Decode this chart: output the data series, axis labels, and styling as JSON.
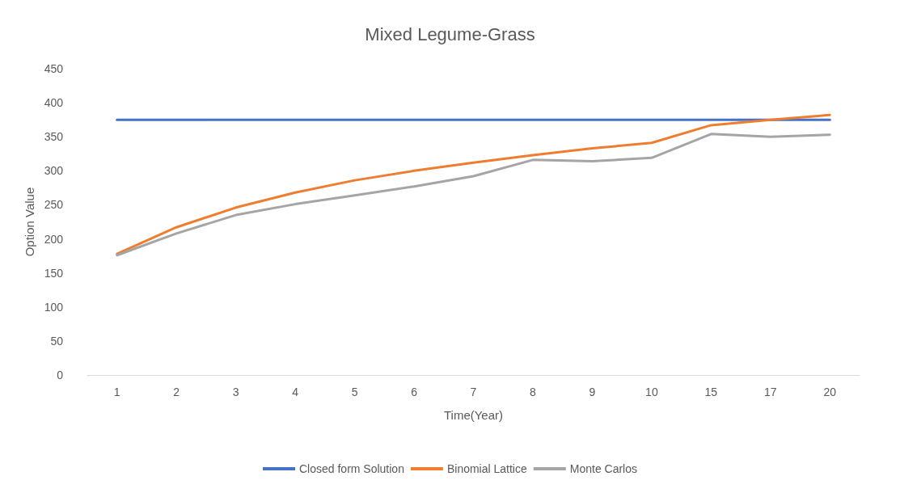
{
  "chart_data": {
    "type": "line",
    "title": "Mixed Legume-Grass",
    "xlabel": "Time(Year)",
    "ylabel": "Option Value",
    "categories": [
      "1",
      "2",
      "3",
      "4",
      "5",
      "6",
      "7",
      "8",
      "9",
      "10",
      "15",
      "17",
      "20"
    ],
    "series": [
      {
        "name": "Closed form Solution",
        "color": "#4472c4",
        "values": [
          375,
          375,
          375,
          375,
          375,
          375,
          375,
          375,
          375,
          375,
          375,
          375,
          375
        ]
      },
      {
        "name": "Binomial Lattice",
        "color": "#ed7d31",
        "values": [
          178,
          217,
          246,
          268,
          286,
          300,
          312,
          323,
          333,
          341,
          367,
          375,
          382
        ]
      },
      {
        "name": "Monte Carlos",
        "color": "#a5a5a5",
        "values": [
          176,
          208,
          235,
          251,
          264,
          277,
          292,
          316,
          314,
          319,
          354,
          350,
          353
        ]
      }
    ],
    "ylim": [
      0,
      450
    ],
    "yticks": [
      0,
      50,
      100,
      150,
      200,
      250,
      300,
      350,
      400,
      450
    ],
    "grid": false,
    "legend": "bottom",
    "marker": "none",
    "line_style": "solid"
  }
}
